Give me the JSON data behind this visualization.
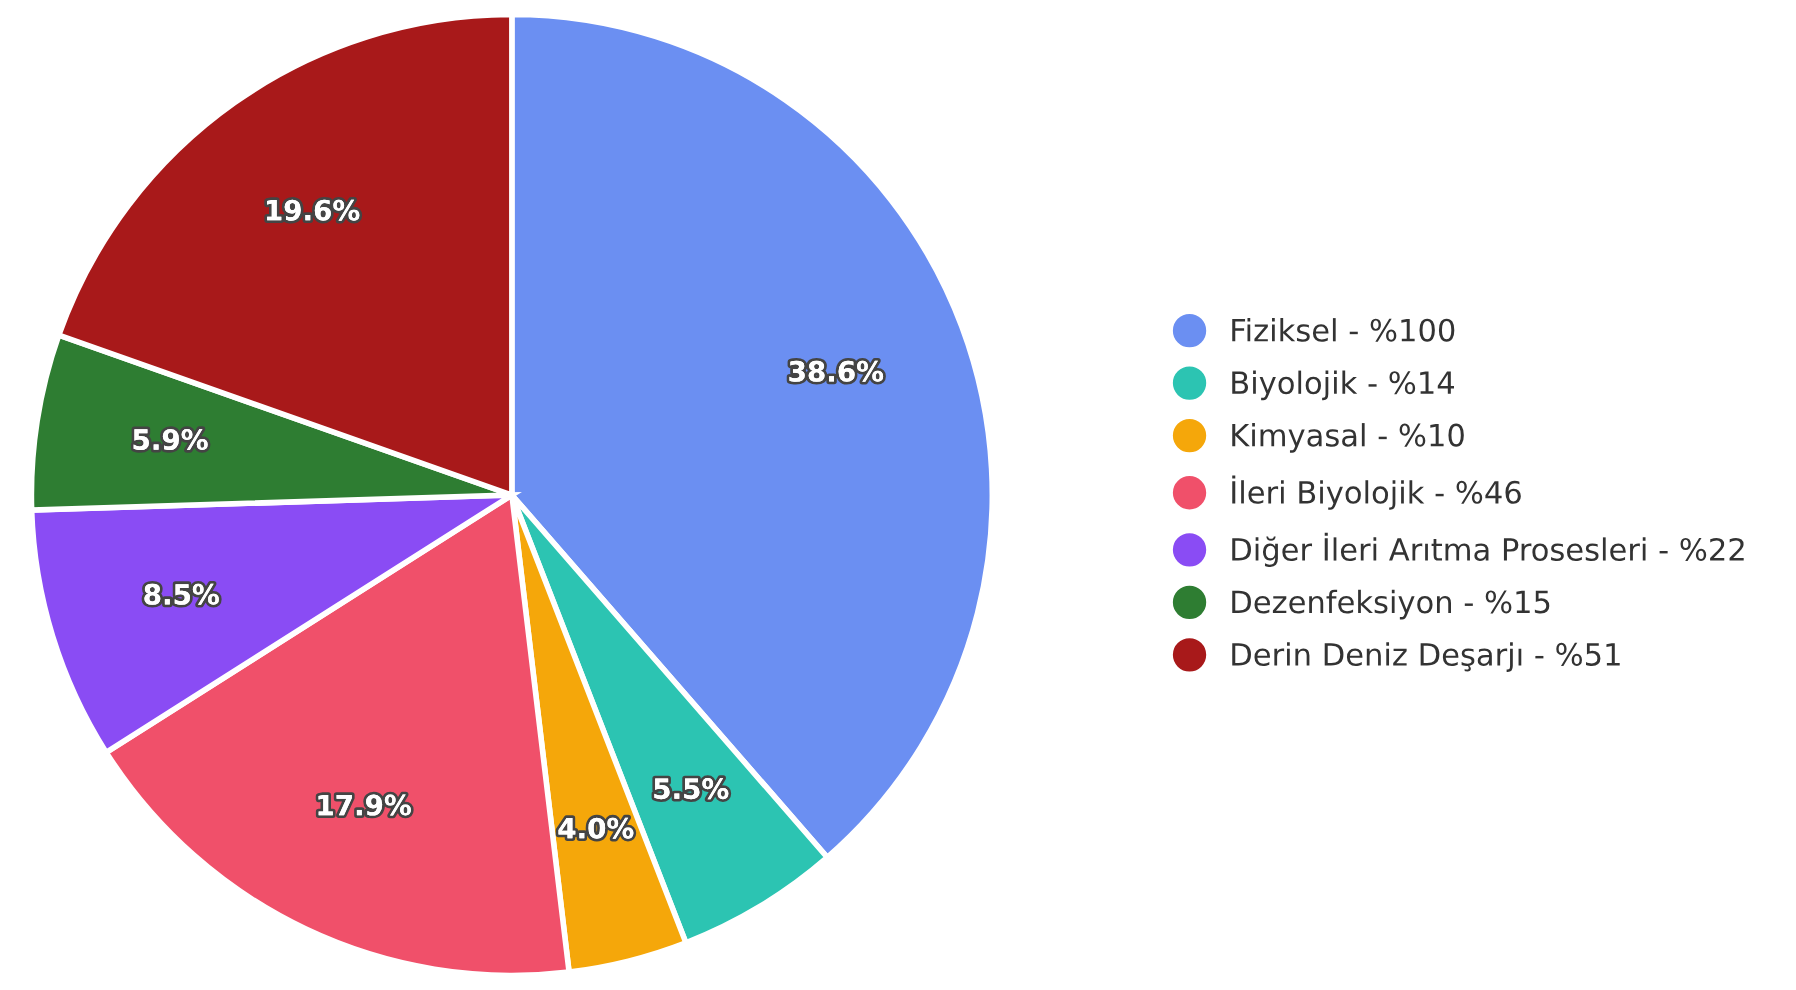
{
  "chart_data": {
    "type": "pie",
    "categories": [
      "Fiziksel - %100",
      "Biyolojik - %14",
      "Kimyasal - %10",
      "İleri Biyolojik - %46",
      "Diğer İleri Arıtma Prosesleri - %22",
      "Dezenfeksiyon - %15",
      "Derin Deniz Deşarjı - %51"
    ],
    "values": [
      38.6,
      5.5,
      4.0,
      17.9,
      8.5,
      5.9,
      19.6
    ],
    "colors": [
      "#6b8ff2",
      "#2cc4b2",
      "#f5a70a",
      "#f0506a",
      "#8a4cf4",
      "#2e7d32",
      "#a8191a"
    ],
    "value_labels": [
      "38.6%",
      "5.5%",
      "4.0%",
      "17.9%",
      "8.5%",
      "5.9%",
      "19.6%"
    ],
    "legend": "right"
  }
}
